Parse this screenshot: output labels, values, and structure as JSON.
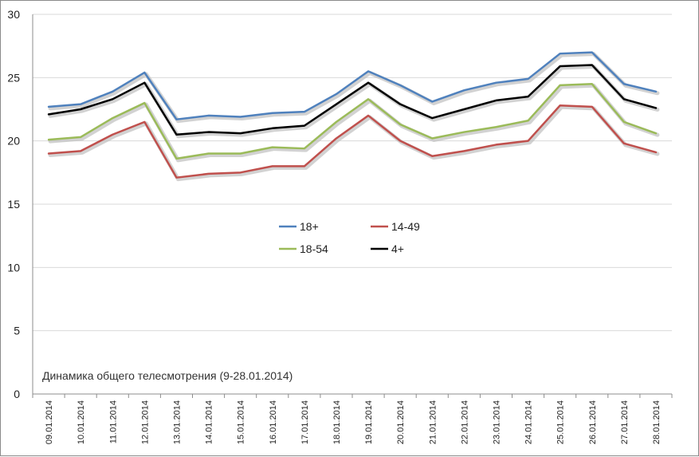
{
  "chart_data": {
    "type": "line",
    "title": "",
    "annotation": "Динамика общего телесмотрения (9-28.01.2014)",
    "xlabel": "",
    "ylabel": "",
    "ylim": [
      0,
      30
    ],
    "yticks": [
      0,
      5,
      10,
      15,
      20,
      25,
      30
    ],
    "grid": true,
    "legend_position": "center",
    "categories": [
      "09.01.2014",
      "10.01.2014",
      "11.01.2014",
      "12.01.2014",
      "13.01.2014",
      "14.01.2014",
      "15.01.2014",
      "16.01.2014",
      "17.01.2014",
      "18.01.2014",
      "19.01.2014",
      "20.01.2014",
      "21.01.2014",
      "22.01.2014",
      "23.01.2014",
      "24.01.2014",
      "25.01.2014",
      "26.01.2014",
      "27.01.2014",
      "28.01.2014"
    ],
    "series": [
      {
        "name": "18+",
        "color": "#4f81bd",
        "values": [
          22.7,
          22.9,
          23.9,
          25.4,
          21.7,
          22.0,
          21.9,
          22.2,
          22.3,
          23.7,
          25.5,
          24.4,
          23.1,
          24.0,
          24.6,
          24.9,
          26.9,
          27.0,
          24.5,
          23.9
        ]
      },
      {
        "name": "14-49",
        "color": "#c0504d",
        "values": [
          19.0,
          19.2,
          20.5,
          21.5,
          17.1,
          17.4,
          17.5,
          18.0,
          18.0,
          20.2,
          22.0,
          20.0,
          18.8,
          19.2,
          19.7,
          20.0,
          22.8,
          22.7,
          19.8,
          19.1
        ]
      },
      {
        "name": "18-54",
        "color": "#9bbb59",
        "values": [
          20.1,
          20.3,
          21.8,
          23.0,
          18.6,
          19.0,
          19.0,
          19.5,
          19.4,
          21.5,
          23.3,
          21.3,
          20.2,
          20.7,
          21.1,
          21.6,
          24.4,
          24.5,
          21.5,
          20.6
        ]
      },
      {
        "name": "4+",
        "color": "#000000",
        "values": [
          22.1,
          22.5,
          23.3,
          24.6,
          20.5,
          20.7,
          20.6,
          21.0,
          21.2,
          22.9,
          24.6,
          22.9,
          21.8,
          22.5,
          23.2,
          23.5,
          25.9,
          26.0,
          23.3,
          22.6
        ]
      }
    ]
  }
}
